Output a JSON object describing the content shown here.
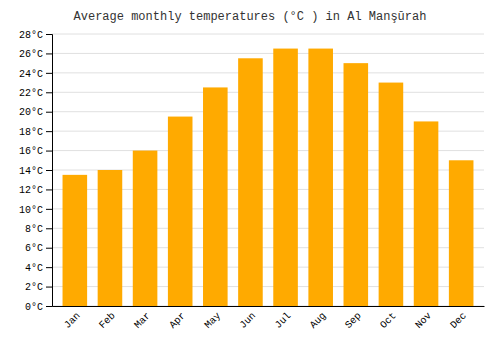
{
  "chart_data": {
    "type": "bar",
    "title": "Average monthly temperatures (°C ) in Al Manşūrah",
    "categories": [
      "Jan",
      "Feb",
      "Mar",
      "Apr",
      "May",
      "Jun",
      "Jul",
      "Aug",
      "Sep",
      "Oct",
      "Nov",
      "Dec"
    ],
    "values": [
      13.5,
      14.0,
      16.0,
      19.5,
      22.5,
      25.5,
      26.5,
      26.5,
      25.0,
      23.0,
      19.0,
      15.0
    ],
    "color": "#FFAA00",
    "ylim": [
      0,
      28
    ],
    "yticks": [
      {
        "value": 0,
        "label": "0°C"
      },
      {
        "value": 2,
        "label": "2°C"
      },
      {
        "value": 4,
        "label": "4°C"
      },
      {
        "value": 6,
        "label": "6°C"
      },
      {
        "value": 8,
        "label": "8°C"
      },
      {
        "value": 10,
        "label": "10°C"
      },
      {
        "value": 12,
        "label": "12°C"
      },
      {
        "value": 14,
        "label": "14°C"
      },
      {
        "value": 16,
        "label": "16°C"
      },
      {
        "value": 18,
        "label": "18°C"
      },
      {
        "value": 20,
        "label": "20°C"
      },
      {
        "value": 22,
        "label": "22°C"
      },
      {
        "value": 24,
        "label": "24°C"
      },
      {
        "value": 26,
        "label": "26°C"
      },
      {
        "value": 28,
        "label": "28°C"
      }
    ],
    "grid": true
  }
}
